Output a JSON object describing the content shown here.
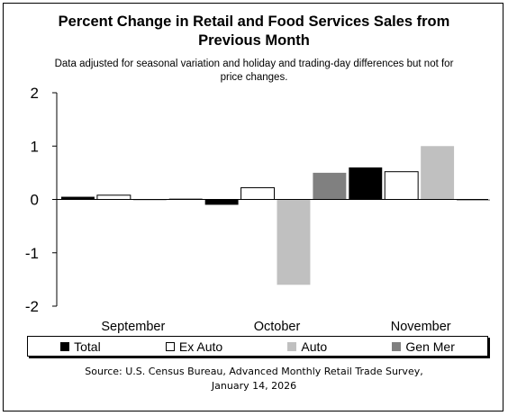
{
  "chart_data": {
    "type": "bar",
    "title_line1": "Percent Change in Retail and Food Services Sales from",
    "title_line2": "Previous Month",
    "subtitle_line1": "Data adjusted for seasonal variation and holiday and trading-day differences but not for",
    "subtitle_line2": "price changes.",
    "categories": [
      "September",
      "October",
      "November"
    ],
    "series": [
      {
        "name": "Total",
        "color": "#000000",
        "values": [
          0.05,
          -0.1,
          0.6
        ]
      },
      {
        "name": "Ex Auto",
        "color": "#ffffff",
        "values": [
          0.08,
          0.22,
          0.52
        ]
      },
      {
        "name": "Auto",
        "color": "#c0c0c0",
        "values": [
          -0.02,
          -1.6,
          1.0
        ]
      },
      {
        "name": "Gen Mer",
        "color": "#808080",
        "values": [
          0.02,
          0.5,
          -0.02
        ]
      }
    ],
    "yticks": [
      "2",
      "1",
      "0",
      "-1",
      "-2"
    ],
    "ylim": [
      -2,
      2
    ],
    "grid": false,
    "legend_position": "bottom",
    "source_line1": "Source: U.S. Census Bureau, Advanced Monthly Retail Trade Survey,",
    "source_line2": "January 14, 2026"
  }
}
